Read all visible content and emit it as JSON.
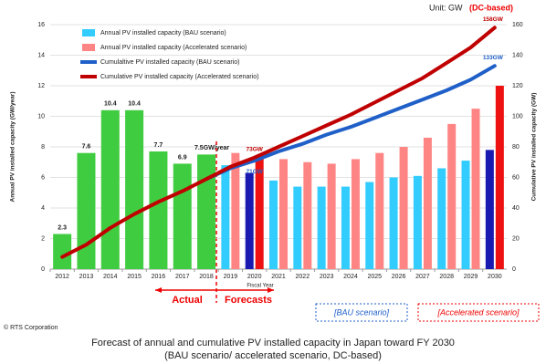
{
  "chart_data": {
    "type": "bar-line",
    "unit_label": "Unit: GW",
    "unit_basis": "(DC-based)",
    "title": "Forecast of annual and cumulative PV installed capacity in Japan toward FY 2030",
    "subtitle": "(BAU scenario/ accelerated scenario, DC-based)",
    "ylabel": "Annual PV installed capacity (GW/year)",
    "y2label": "Cumulative PV installed capacity (GW)",
    "xlabel": "Fiscal Year",
    "annotations": {
      "actual": "Actual",
      "forecasts": "Forecasts",
      "bau_box": "[BAU scenario]",
      "accelerated_box": "[Accelerated scenario]",
      "credit": "© RTS Corporation"
    },
    "categories": [
      "2012",
      "2013",
      "2014",
      "2015",
      "2016",
      "2017",
      "2018",
      "2019",
      "2020",
      "2021",
      "2022",
      "2023",
      "2024",
      "2025",
      "2026",
      "2027",
      "2028",
      "2029",
      "2030"
    ],
    "ylim": [
      0,
      16
    ],
    "yticks": [
      0,
      2,
      4,
      6,
      8,
      10,
      12,
      14,
      16
    ],
    "y2lim": [
      0,
      160
    ],
    "y2ticks": [
      0,
      20,
      40,
      60,
      80,
      100,
      120,
      140,
      160
    ],
    "grid": true,
    "series": [
      {
        "kind": "bar",
        "color": "#40cc40",
        "values": [
          2.3,
          7.6,
          10.4,
          10.4,
          7.7,
          6.9,
          7.5,
          null,
          null,
          null,
          null,
          null,
          null,
          null,
          null,
          null,
          null,
          null,
          null
        ],
        "value_labels": [
          "2.3",
          "7.6",
          "10.4",
          "10.4",
          "7.7",
          "6.9",
          "7.5GW/year",
          null,
          null,
          null,
          null,
          null,
          null,
          null,
          null,
          null,
          null,
          null,
          null
        ]
      },
      {
        "kind": "bar",
        "name": "Annual PV installed capacity (BAU scenario)",
        "color": "#33ccff",
        "colors": [
          null,
          null,
          null,
          null,
          null,
          null,
          null,
          "#33ccff",
          "#1a1ab0",
          "#33ccff",
          "#33ccff",
          "#33ccff",
          "#33ccff",
          "#33ccff",
          "#33ccff",
          "#33ccff",
          "#33ccff",
          "#33ccff",
          "#1a1ab0"
        ],
        "values": [
          null,
          null,
          null,
          null,
          null,
          null,
          null,
          6.8,
          6.3,
          5.8,
          5.4,
          5.4,
          5.4,
          5.7,
          6.0,
          6.1,
          6.6,
          7.1,
          7.8
        ]
      },
      {
        "kind": "bar",
        "name": "Annual PV installed capacity (Accelerated scenario)",
        "color": "#ff8585",
        "colors": [
          null,
          null,
          null,
          null,
          null,
          null,
          null,
          "#ff8585",
          "#ee1111",
          "#ff8585",
          "#ff8585",
          "#ff8585",
          "#ff8585",
          "#ff8585",
          "#ff8585",
          "#ff8585",
          "#ff8585",
          "#ff8585",
          "#ee1111"
        ],
        "values": [
          null,
          null,
          null,
          null,
          null,
          null,
          null,
          7.6,
          7.3,
          7.2,
          7.0,
          6.9,
          7.2,
          7.6,
          8.0,
          8.6,
          9.5,
          10.5,
          12.0
        ]
      },
      {
        "kind": "line",
        "axis": "y2",
        "name": "Cumulaltive PV installed capacity (BAU scenario)",
        "color": "#1f5fc8",
        "values": [
          null,
          null,
          null,
          null,
          null,
          null,
          59,
          66,
          71,
          77,
          82,
          88,
          93,
          99,
          105,
          111,
          117,
          124,
          133
        ],
        "value_labels": [
          null,
          null,
          null,
          null,
          null,
          null,
          null,
          null,
          "71GW",
          null,
          null,
          null,
          null,
          null,
          null,
          null,
          null,
          null,
          "133GW"
        ]
      },
      {
        "kind": "line",
        "axis": "y2",
        "name": "Cumulative PV installed capacity (Accelerated scenario)",
        "color": "#c00000",
        "values": [
          8,
          16,
          27,
          36,
          44,
          51,
          59,
          67,
          73,
          80,
          87,
          94,
          101,
          109,
          117,
          125,
          135,
          145,
          158
        ],
        "value_labels": [
          null,
          null,
          null,
          null,
          null,
          null,
          null,
          null,
          "73GW",
          null,
          null,
          null,
          null,
          null,
          null,
          null,
          null,
          null,
          "158GW"
        ]
      }
    ]
  }
}
